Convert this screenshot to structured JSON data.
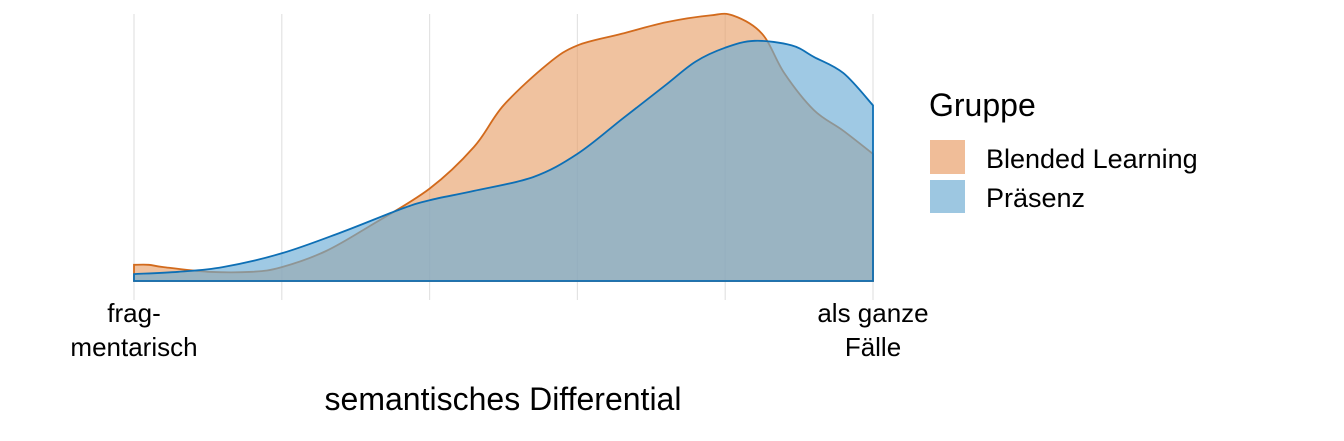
{
  "chart_data": {
    "type": "area",
    "xlabel": "semantisches Differential",
    "ylabel": "",
    "xlim": [
      1,
      6
    ],
    "grid": true,
    "x_ticks": [
      {
        "x": 1,
        "label_lines": [
          "frag-",
          "mentarisch"
        ]
      },
      {
        "x": 6,
        "label_lines": [
          "als ganze",
          "Fälle"
        ]
      }
    ],
    "legend": {
      "title": "Gruppe",
      "position": "right",
      "items": [
        {
          "label": "Blended Learning",
          "color": "#f0bd98"
        },
        {
          "label": "Präsenz",
          "color": "#9dc7e1"
        }
      ]
    },
    "series": [
      {
        "name": "Blended Learning",
        "fill": "#e8a26b",
        "stroke": "#d26a1c",
        "x": [
          1.0,
          1.1,
          1.2,
          1.5,
          1.8,
          2.0,
          2.3,
          2.6,
          3.0,
          3.3,
          3.5,
          3.8,
          4.0,
          4.3,
          4.6,
          4.9,
          5.05,
          5.25,
          5.4,
          5.6,
          5.8,
          6.0
        ],
        "y": [
          0.07,
          0.07,
          0.06,
          0.04,
          0.04,
          0.06,
          0.13,
          0.24,
          0.4,
          0.58,
          0.76,
          0.94,
          1.02,
          1.07,
          1.12,
          1.15,
          1.15,
          1.07,
          0.9,
          0.74,
          0.65,
          0.55
        ]
      },
      {
        "name": "Präsenz",
        "fill": "#6cacd6",
        "stroke": "#0d6fb5",
        "x": [
          1.0,
          1.3,
          1.6,
          2.0,
          2.4,
          2.8,
          3.0,
          3.3,
          3.7,
          4.0,
          4.3,
          4.6,
          4.8,
          5.0,
          5.2,
          5.45,
          5.6,
          5.8,
          6.0
        ],
        "y": [
          0.03,
          0.04,
          0.06,
          0.12,
          0.21,
          0.31,
          0.35,
          0.39,
          0.45,
          0.55,
          0.7,
          0.85,
          0.95,
          1.01,
          1.04,
          1.02,
          0.97,
          0.9,
          0.76
        ]
      }
    ]
  }
}
